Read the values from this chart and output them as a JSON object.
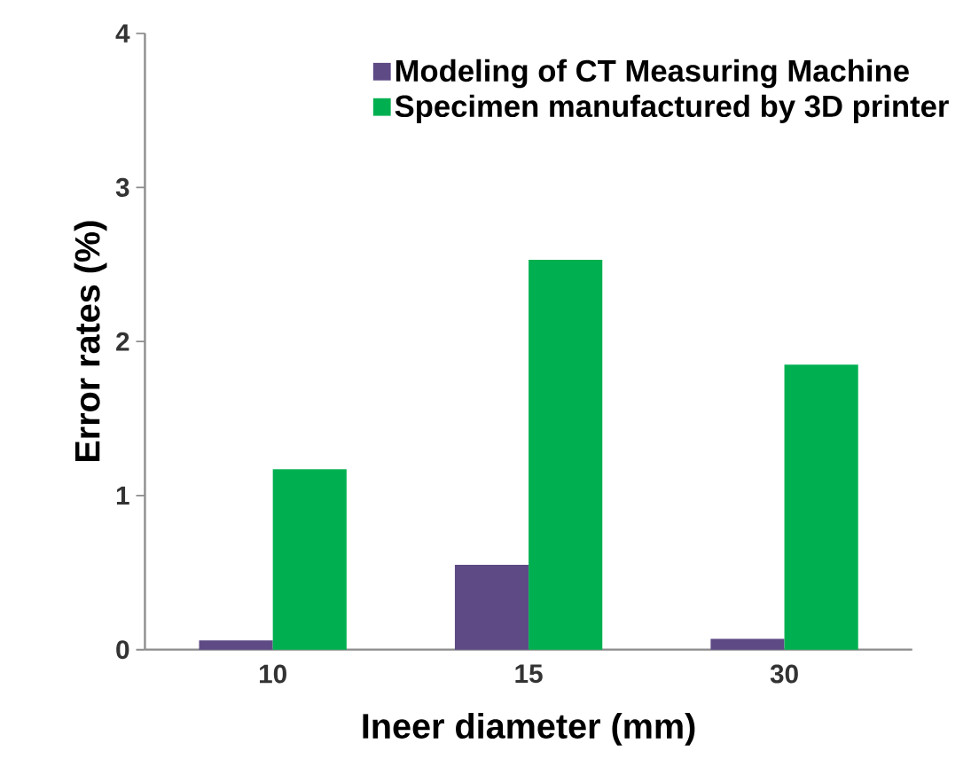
{
  "chart_data": {
    "type": "bar",
    "xlabel": "Ineer diameter (mm)",
    "ylabel": "Error rates (%)",
    "categories": [
      "10",
      "15",
      "30"
    ],
    "series": [
      {
        "name": "Modeling of CT Measuring Machine",
        "color": "#5e4a85",
        "values": [
          0.06,
          0.55,
          0.07
        ]
      },
      {
        "name": "Specimen manufactured by 3D printer",
        "color": "#00b050",
        "values": [
          1.17,
          2.53,
          1.85
        ]
      }
    ],
    "ylim": [
      0,
      4
    ],
    "yticks": [
      0,
      1,
      2,
      3,
      4
    ],
    "legend": "top right",
    "grid": false
  }
}
